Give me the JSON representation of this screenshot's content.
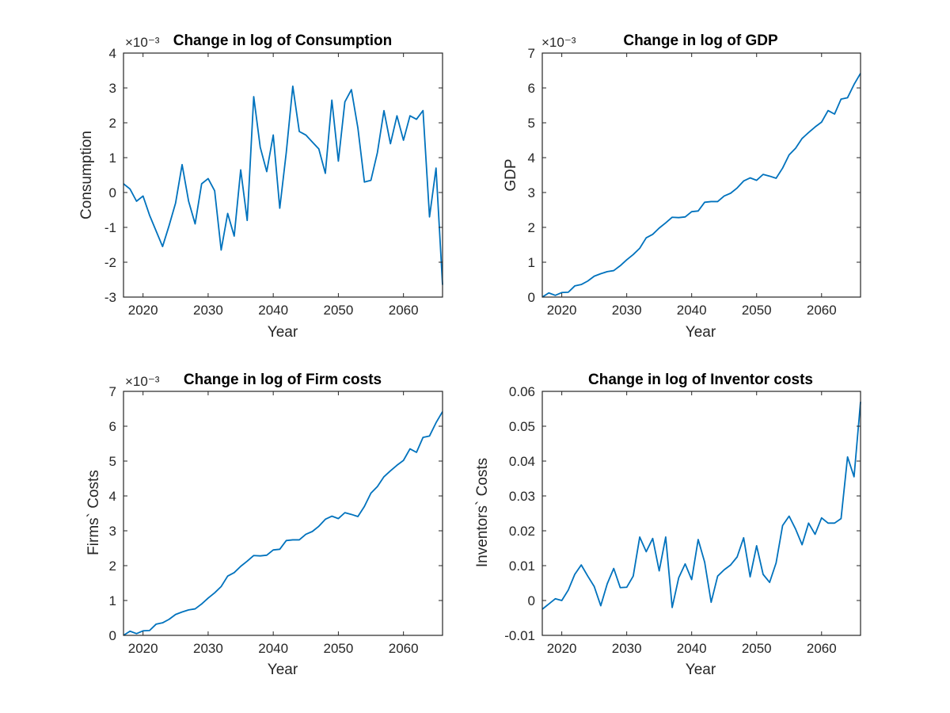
{
  "chart_data": [
    {
      "type": "line",
      "title": "Change in log of Consumption",
      "xlabel": "Year",
      "ylabel": "Consumption",
      "exponent": "×10⁻³",
      "xlim": [
        2017,
        2066
      ],
      "ylim": [
        -3,
        4
      ],
      "xticks": [
        2020,
        2030,
        2040,
        2050,
        2060
      ],
      "yticks": [
        -3,
        -2,
        -1,
        0,
        1,
        2,
        3,
        4
      ],
      "ytick_labels": [
        "-3",
        "-2",
        "-1",
        "0",
        "1",
        "2",
        "3",
        "4"
      ],
      "grid": false,
      "color": "#0072BD",
      "x": [
        2017,
        2018,
        2019,
        2020,
        2021,
        2022,
        2023,
        2024,
        2025,
        2026,
        2027,
        2028,
        2029,
        2030,
        2031,
        2032,
        2033,
        2034,
        2035,
        2036,
        2037,
        2038,
        2039,
        2040,
        2041,
        2042,
        2043,
        2044,
        2045,
        2046,
        2047,
        2048,
        2049,
        2050,
        2051,
        2052,
        2053,
        2054,
        2055,
        2056,
        2057,
        2058,
        2059,
        2060,
        2061,
        2062,
        2063,
        2064,
        2065,
        2066
      ],
      "y": [
        0.25,
        0.1,
        -0.25,
        -0.1,
        -0.65,
        -1.1,
        -1.55,
        -0.95,
        -0.3,
        0.8,
        -0.25,
        -0.9,
        0.25,
        0.4,
        0.05,
        -1.65,
        -0.6,
        -1.25,
        0.65,
        -0.8,
        2.75,
        1.3,
        0.6,
        1.65,
        -0.45,
        1.15,
        3.05,
        1.75,
        1.65,
        1.45,
        1.25,
        0.55,
        2.65,
        0.9,
        2.6,
        2.95,
        1.85,
        0.3,
        0.35,
        1.15,
        2.35,
        1.4,
        2.2,
        1.5,
        2.2,
        2.1,
        2.35,
        -0.7,
        0.7,
        -2.65
      ]
    },
    {
      "type": "line",
      "title": "Change in log of GDP",
      "xlabel": "Year",
      "ylabel": "GDP",
      "exponent": "×10⁻³",
      "xlim": [
        2017,
        2066
      ],
      "ylim": [
        0,
        7
      ],
      "xticks": [
        2020,
        2030,
        2040,
        2050,
        2060
      ],
      "yticks": [
        0,
        1,
        2,
        3,
        4,
        5,
        6,
        7
      ],
      "ytick_labels": [
        "0",
        "1",
        "2",
        "3",
        "4",
        "5",
        "6",
        "7"
      ],
      "grid": false,
      "color": "#0072BD",
      "x": [
        2017,
        2018,
        2019,
        2020,
        2021,
        2022,
        2023,
        2024,
        2025,
        2026,
        2027,
        2028,
        2029,
        2030,
        2031,
        2032,
        2033,
        2034,
        2035,
        2036,
        2037,
        2038,
        2039,
        2040,
        2041,
        2042,
        2043,
        2044,
        2045,
        2046,
        2047,
        2048,
        2049,
        2050,
        2051,
        2052,
        2053,
        2054,
        2055,
        2056,
        2057,
        2058,
        2059,
        2060,
        2061,
        2062,
        2063,
        2064,
        2065,
        2066
      ],
      "y": [
        0,
        0.12,
        0.05,
        0.13,
        0.14,
        0.32,
        0.36,
        0.46,
        0.6,
        0.67,
        0.73,
        0.76,
        0.9,
        1.07,
        1.22,
        1.4,
        1.7,
        1.8,
        1.98,
        2.13,
        2.29,
        2.28,
        2.3,
        2.45,
        2.47,
        2.72,
        2.74,
        2.74,
        2.9,
        2.98,
        3.13,
        3.33,
        3.42,
        3.35,
        3.52,
        3.47,
        3.41,
        3.7,
        4.08,
        4.27,
        4.55,
        4.72,
        4.88,
        5.02,
        5.35,
        5.25,
        5.68,
        5.72,
        6.1,
        6.42
      ]
    },
    {
      "type": "line",
      "title": "Change in log of Firm costs",
      "xlabel": "Year",
      "ylabel": "Firms` Costs",
      "exponent": "×10⁻³",
      "xlim": [
        2017,
        2066
      ],
      "ylim": [
        0,
        7
      ],
      "xticks": [
        2020,
        2030,
        2040,
        2050,
        2060
      ],
      "yticks": [
        0,
        1,
        2,
        3,
        4,
        5,
        6,
        7
      ],
      "ytick_labels": [
        "0",
        "1",
        "2",
        "3",
        "4",
        "5",
        "6",
        "7"
      ],
      "grid": false,
      "color": "#0072BD",
      "x": [
        2017,
        2018,
        2019,
        2020,
        2021,
        2022,
        2023,
        2024,
        2025,
        2026,
        2027,
        2028,
        2029,
        2030,
        2031,
        2032,
        2033,
        2034,
        2035,
        2036,
        2037,
        2038,
        2039,
        2040,
        2041,
        2042,
        2043,
        2044,
        2045,
        2046,
        2047,
        2048,
        2049,
        2050,
        2051,
        2052,
        2053,
        2054,
        2055,
        2056,
        2057,
        2058,
        2059,
        2060,
        2061,
        2062,
        2063,
        2064,
        2065,
        2066
      ],
      "y": [
        0,
        0.12,
        0.05,
        0.13,
        0.14,
        0.32,
        0.36,
        0.46,
        0.6,
        0.67,
        0.73,
        0.76,
        0.9,
        1.07,
        1.22,
        1.4,
        1.7,
        1.8,
        1.98,
        2.13,
        2.29,
        2.28,
        2.3,
        2.45,
        2.47,
        2.72,
        2.74,
        2.74,
        2.9,
        2.98,
        3.13,
        3.33,
        3.42,
        3.35,
        3.52,
        3.47,
        3.41,
        3.7,
        4.08,
        4.27,
        4.55,
        4.72,
        4.88,
        5.02,
        5.35,
        5.25,
        5.68,
        5.72,
        6.1,
        6.42
      ]
    },
    {
      "type": "line",
      "title": "Change in log of Inventor costs",
      "xlabel": "Year",
      "ylabel": "Inventors` Costs",
      "exponent": "",
      "xlim": [
        2017,
        2066
      ],
      "ylim": [
        -0.01,
        0.06
      ],
      "xticks": [
        2020,
        2030,
        2040,
        2050,
        2060
      ],
      "yticks": [
        -0.01,
        0,
        0.01,
        0.02,
        0.03,
        0.04,
        0.05,
        0.06
      ],
      "ytick_labels": [
        "-0.01",
        "0",
        "0.01",
        "0.02",
        "0.03",
        "0.04",
        "0.05",
        "0.06"
      ],
      "grid": false,
      "color": "#0072BD",
      "x": [
        2017,
        2018,
        2019,
        2020,
        2021,
        2022,
        2023,
        2024,
        2025,
        2026,
        2027,
        2028,
        2029,
        2030,
        2031,
        2032,
        2033,
        2034,
        2035,
        2036,
        2037,
        2038,
        2039,
        2040,
        2041,
        2042,
        2043,
        2044,
        2045,
        2046,
        2047,
        2048,
        2049,
        2050,
        2051,
        2052,
        2053,
        2054,
        2055,
        2056,
        2057,
        2058,
        2059,
        2060,
        2061,
        2062,
        2063,
        2064,
        2065,
        2066
      ],
      "y": [
        -0.0025,
        -0.001,
        0.0005,
        0,
        0.003,
        0.0075,
        0.0102,
        0.007,
        0.004,
        -0.0015,
        0.0048,
        0.0092,
        0.0037,
        0.0038,
        0.007,
        0.0182,
        0.014,
        0.0178,
        0.0085,
        0.0182,
        -0.002,
        0.0065,
        0.0105,
        0.006,
        0.0175,
        0.011,
        -0.0005,
        0.007,
        0.0088,
        0.0102,
        0.0125,
        0.018,
        0.0068,
        0.0157,
        0.0075,
        0.0052,
        0.0108,
        0.0215,
        0.0242,
        0.0205,
        0.016,
        0.0222,
        0.019,
        0.0237,
        0.0222,
        0.0222,
        0.0235,
        0.0412,
        0.0355,
        0.057
      ]
    }
  ]
}
